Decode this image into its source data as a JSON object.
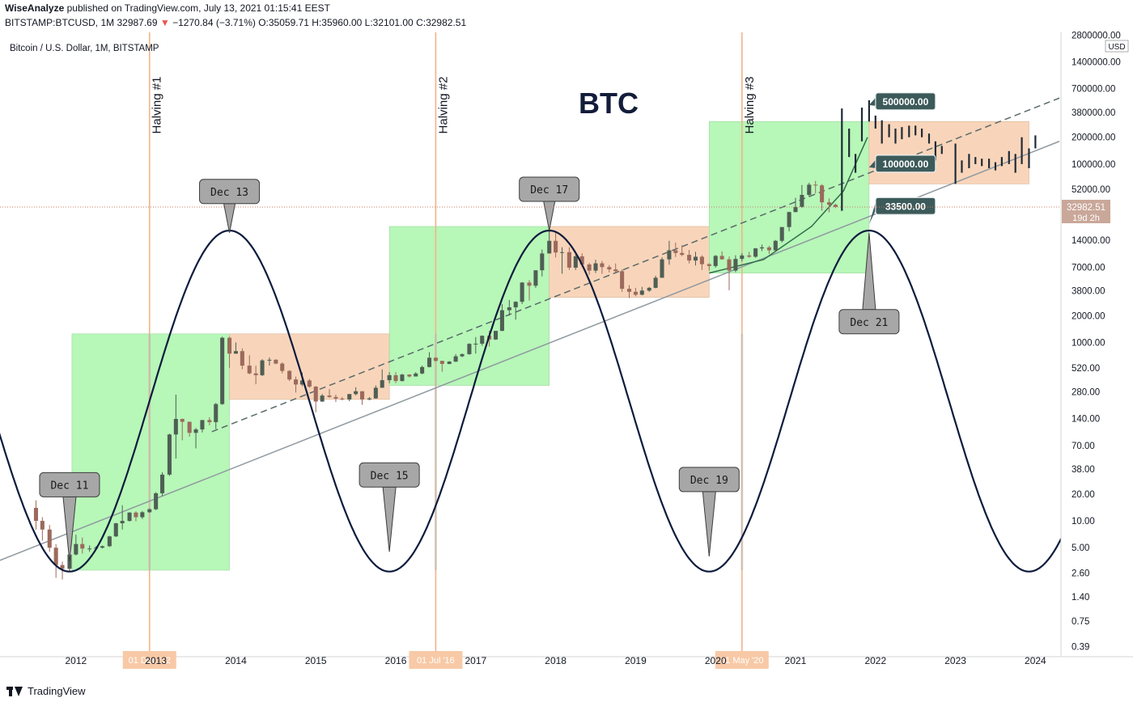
{
  "header": {
    "author": "WiseAnalyze",
    "published_text": "published on TradingView.com, July 13, 2021 01:15:41 EEST",
    "symbol": "BITSTAMP:BTCUSD, 1M",
    "price": "32987.69",
    "change_arrow": "▼",
    "change": "−1270.84 (−3.71%)",
    "open": "O:35059.71",
    "high": "H:35960.00",
    "low": "L:32101.00",
    "close": "C:32982.51"
  },
  "legend_label": "Bitcoin / U.S. Dollar, 1M, BITSTAMP",
  "chart_title": "BTC",
  "footer_brand": "TradingView",
  "colors": {
    "green_box": "#b7f7b8",
    "orange_box": "#f8d5ba",
    "halving_line": "#f0b48a",
    "wave": "#0d1b3e",
    "candle_up": "#4f5f54",
    "candle_down": "#9c6a5c",
    "label_fill": "#a7a7a7",
    "price_tag": "#3d5a5a",
    "current_price_bg": "#c9a799"
  },
  "chart_data": {
    "type": "candlestick",
    "y_scale": "log",
    "ylim": [
      0.3,
      3000000
    ],
    "xlim": [
      "2011-01",
      "2024-04"
    ],
    "y_ticks": [
      "2800000.00",
      "1400000.00",
      "700000.00",
      "380000.00",
      "200000.00",
      "100000.00",
      "52000.00",
      "14000.00",
      "7000.00",
      "3800.00",
      "2000.00",
      "1000.00",
      "520.00",
      "280.00",
      "140.00",
      "70.00",
      "38.00",
      "20.00",
      "10.00",
      "5.00",
      "2.60",
      "1.40",
      "0.75",
      "0.39"
    ],
    "y_tick_values": [
      2800000,
      1400000,
      700000,
      380000,
      200000,
      100000,
      52000,
      14000,
      7000,
      3800,
      2000,
      1000,
      520,
      280,
      140,
      70,
      38,
      20,
      10,
      5,
      2.6,
      1.4,
      0.75,
      0.39
    ],
    "x_ticks": [
      "2012",
      "2013",
      "2014",
      "2015",
      "2016",
      "2017",
      "2018",
      "2019",
      "2020",
      "2021",
      "2022",
      "2023",
      "2024"
    ],
    "x_tick_dates": [
      2012.0,
      2013.0,
      2014.0,
      2015.0,
      2016.0,
      2017.0,
      2018.0,
      2019.0,
      2020.0,
      2021.0,
      2022.0,
      2023.0,
      2024.0
    ],
    "currency_label": "USD",
    "current_price": {
      "label": "32982.51",
      "countdown": "19d 2h",
      "value": 32982.51
    },
    "halvings": [
      {
        "label": "Halving #1",
        "date": 2012.92,
        "date_tag": "01 Dec '12"
      },
      {
        "label": "Halving #2",
        "date": 2016.5,
        "date_tag": "01 Jul '16"
      },
      {
        "label": "Halving #3",
        "date": 2020.33,
        "date_tag": "01 May '20"
      }
    ],
    "cycle_wave": {
      "tops": [
        2013.92,
        2017.92,
        2021.92
      ],
      "bottoms": [
        2011.92,
        2015.92,
        2019.92,
        2023.92
      ],
      "top_value": 18000,
      "bottom_value": 2.7
    },
    "callouts": [
      {
        "label": "Dec 11",
        "date": 2011.92,
        "value": 3.5,
        "position": "above"
      },
      {
        "label": "Dec 13",
        "date": 2013.92,
        "value": 17000,
        "position": "above"
      },
      {
        "label": "Dec 15",
        "date": 2015.92,
        "value": 4.5,
        "position": "above"
      },
      {
        "label": "Dec 17",
        "date": 2017.92,
        "value": 18000,
        "position": "above"
      },
      {
        "label": "Dec 19",
        "date": 2019.92,
        "value": 4.0,
        "position": "above"
      },
      {
        "label": "Dec 21",
        "date": 2021.92,
        "value": 17000,
        "position": "below"
      }
    ],
    "price_targets": [
      {
        "label": "500000.00",
        "value": 500000
      },
      {
        "label": "100000.00",
        "value": 100000
      },
      {
        "label": "33500.00",
        "value": 33500
      }
    ],
    "boxes": [
      {
        "kind": "green",
        "x0": 2011.95,
        "x1": 2013.92,
        "y0": 2.8,
        "y1": 1250
      },
      {
        "kind": "orange",
        "x0": 2013.92,
        "x1": 2015.92,
        "y0": 230,
        "y1": 1250
      },
      {
        "kind": "green",
        "x0": 2015.92,
        "x1": 2017.92,
        "y0": 330,
        "y1": 20000
      },
      {
        "kind": "orange",
        "x0": 2017.92,
        "x1": 2019.92,
        "y0": 3200,
        "y1": 20000
      },
      {
        "kind": "green",
        "x0": 2019.92,
        "x1": 2021.92,
        "y0": 6000,
        "y1": 300000
      },
      {
        "kind": "orange",
        "x0": 2021.92,
        "x1": 2023.92,
        "y0": 60000,
        "y1": 300000
      }
    ],
    "trend_lines": [
      {
        "style": "solid",
        "from": [
          2010.9,
          3.2
        ],
        "to": [
          2024.3,
          180000
        ]
      },
      {
        "style": "dashed",
        "from": [
          2013.7,
          100
        ],
        "to": [
          2024.3,
          550000
        ]
      }
    ],
    "projection_curve": [
      [
        2019.92,
        6000
      ],
      [
        2020.6,
        8500
      ],
      [
        2021.2,
        20000
      ],
      [
        2021.6,
        50000
      ],
      [
        2021.9,
        200000
      ]
    ],
    "candles": [
      [
        2011.5,
        14,
        17,
        8,
        10
      ],
      [
        2011.58,
        10,
        11,
        6,
        8
      ],
      [
        2011.67,
        8,
        9,
        4.5,
        5
      ],
      [
        2011.75,
        5,
        5.5,
        2.3,
        3.2
      ],
      [
        2011.83,
        3.2,
        3.5,
        2.2,
        2.9
      ],
      [
        2011.92,
        2.9,
        4.5,
        2.7,
        4.2
      ],
      [
        2012.0,
        4.2,
        7,
        4.1,
        5.5
      ],
      [
        2012.08,
        5.5,
        6.5,
        4.3,
        4.9
      ],
      [
        2012.17,
        4.9,
        5.3,
        4.5,
        4.9
      ],
      [
        2012.25,
        4.9,
        5.2,
        4.7,
        5.0
      ],
      [
        2012.33,
        5.0,
        5.3,
        4.9,
        5.2
      ],
      [
        2012.42,
        5.2,
        6.8,
        5.1,
        6.7
      ],
      [
        2012.5,
        6.7,
        9.5,
        6.6,
        9.4
      ],
      [
        2012.58,
        9.4,
        15,
        8,
        10
      ],
      [
        2012.67,
        10,
        12.5,
        9.8,
        12.4
      ],
      [
        2012.75,
        12.4,
        12.8,
        9.9,
        11
      ],
      [
        2012.83,
        11,
        12.9,
        10.5,
        12.5
      ],
      [
        2012.92,
        12.5,
        13.8,
        12.3,
        13.5
      ],
      [
        2013.0,
        13.5,
        21,
        13.2,
        20.4
      ],
      [
        2013.08,
        20.4,
        35,
        19,
        33
      ],
      [
        2013.17,
        33,
        95,
        32,
        93
      ],
      [
        2013.25,
        93,
        260,
        50,
        139
      ],
      [
        2013.33,
        139,
        140,
        80,
        129
      ],
      [
        2013.42,
        129,
        130,
        88,
        97
      ],
      [
        2013.5,
        97,
        110,
        65,
        106
      ],
      [
        2013.58,
        106,
        125,
        98,
        135
      ],
      [
        2013.67,
        135,
        145,
        118,
        128
      ],
      [
        2013.75,
        128,
        210,
        107,
        204
      ],
      [
        2013.83,
        204,
        1160,
        200,
        1130
      ],
      [
        2013.92,
        1130,
        1160,
        520,
        750
      ],
      [
        2014.0,
        750,
        1000,
        745,
        800
      ],
      [
        2014.08,
        800,
        860,
        500,
        550
      ],
      [
        2014.17,
        550,
        720,
        440,
        450
      ],
      [
        2014.25,
        450,
        550,
        340,
        430
      ],
      [
        2014.33,
        430,
        650,
        420,
        630
      ],
      [
        2014.42,
        630,
        680,
        550,
        640
      ],
      [
        2014.5,
        640,
        650,
        570,
        580
      ],
      [
        2014.58,
        580,
        600,
        450,
        480
      ],
      [
        2014.67,
        480,
        490,
        370,
        385
      ],
      [
        2014.75,
        385,
        415,
        275,
        338
      ],
      [
        2014.83,
        338,
        460,
        325,
        375
      ],
      [
        2014.92,
        375,
        390,
        310,
        320
      ],
      [
        2015.0,
        320,
        325,
        165,
        218
      ],
      [
        2015.08,
        218,
        265,
        215,
        254
      ],
      [
        2015.17,
        254,
        300,
        240,
        245
      ],
      [
        2015.25,
        245,
        260,
        215,
        235
      ],
      [
        2015.33,
        235,
        245,
        225,
        230
      ],
      [
        2015.42,
        230,
        265,
        220,
        264
      ],
      [
        2015.5,
        264,
        315,
        255,
        284
      ],
      [
        2015.58,
        284,
        285,
        200,
        230
      ],
      [
        2015.67,
        230,
        245,
        225,
        236
      ],
      [
        2015.75,
        236,
        330,
        235,
        311
      ],
      [
        2015.83,
        311,
        500,
        310,
        378
      ],
      [
        2015.92,
        378,
        465,
        350,
        430
      ],
      [
        2016.0,
        430,
        465,
        350,
        370
      ],
      [
        2016.08,
        370,
        445,
        365,
        437
      ],
      [
        2016.17,
        437,
        440,
        405,
        416
      ],
      [
        2016.25,
        416,
        465,
        415,
        449
      ],
      [
        2016.33,
        449,
        550,
        440,
        531
      ],
      [
        2016.42,
        531,
        780,
        525,
        675
      ],
      [
        2016.5,
        675,
        680,
        610,
        622
      ],
      [
        2016.58,
        622,
        625,
        470,
        575
      ],
      [
        2016.67,
        575,
        620,
        570,
        610
      ],
      [
        2016.75,
        610,
        740,
        605,
        700
      ],
      [
        2016.83,
        700,
        755,
        685,
        740
      ],
      [
        2016.92,
        740,
        980,
        730,
        965
      ],
      [
        2017.0,
        965,
        1150,
        750,
        970
      ],
      [
        2017.08,
        970,
        1200,
        920,
        1190
      ],
      [
        2017.17,
        1190,
        1350,
        900,
        1080
      ],
      [
        2017.25,
        1080,
        1350,
        1070,
        1350
      ],
      [
        2017.33,
        1350,
        2700,
        1340,
        2300
      ],
      [
        2017.42,
        2300,
        3000,
        2000,
        2480
      ],
      [
        2017.5,
        2480,
        2900,
        1800,
        2860
      ],
      [
        2017.58,
        2860,
        4750,
        2700,
        4700
      ],
      [
        2017.67,
        4700,
        5000,
        2950,
        4330
      ],
      [
        2017.75,
        4330,
        6450,
        4100,
        6450
      ],
      [
        2017.83,
        6450,
        11000,
        5500,
        9950
      ],
      [
        2017.92,
        9950,
        19700,
        9950,
        13800
      ],
      [
        2018.0,
        13800,
        17200,
        9000,
        10200
      ],
      [
        2018.08,
        10200,
        11700,
        5900,
        10300
      ],
      [
        2018.17,
        10300,
        11700,
        6500,
        6900
      ],
      [
        2018.25,
        6900,
        9750,
        6500,
        9250
      ],
      [
        2018.33,
        9250,
        10000,
        7000,
        7500
      ],
      [
        2018.42,
        7500,
        7800,
        5750,
        6400
      ],
      [
        2018.5,
        6400,
        8480,
        6000,
        7720
      ],
      [
        2018.58,
        7720,
        8200,
        5880,
        7000
      ],
      [
        2018.67,
        7000,
        7400,
        6100,
        6600
      ],
      [
        2018.75,
        6600,
        7700,
        6100,
        6300
      ],
      [
        2018.83,
        6300,
        6600,
        3700,
        4000
      ],
      [
        2018.92,
        4000,
        4400,
        3150,
        3700
      ],
      [
        2019.0,
        3700,
        4100,
        3300,
        3430
      ],
      [
        2019.08,
        3430,
        4200,
        3380,
        3820
      ],
      [
        2019.17,
        3820,
        4200,
        3700,
        4100
      ],
      [
        2019.25,
        4100,
        5600,
        4050,
        5320
      ],
      [
        2019.33,
        5320,
        9000,
        5300,
        8550
      ],
      [
        2019.42,
        8550,
        13800,
        7450,
        10800
      ],
      [
        2019.5,
        10800,
        13200,
        9100,
        10080
      ],
      [
        2019.58,
        10080,
        12300,
        9300,
        9600
      ],
      [
        2019.67,
        9600,
        10900,
        7700,
        8300
      ],
      [
        2019.75,
        8300,
        10400,
        7300,
        9150
      ],
      [
        2019.83,
        9150,
        9500,
        6500,
        7550
      ],
      [
        2019.92,
        7550,
        7750,
        6400,
        7200
      ],
      [
        2020.0,
        7200,
        9550,
        6900,
        9350
      ],
      [
        2020.08,
        9350,
        10500,
        8500,
        8550
      ],
      [
        2020.17,
        8550,
        9200,
        3850,
        6400
      ],
      [
        2020.25,
        6400,
        9500,
        6150,
        8650
      ],
      [
        2020.33,
        8650,
        10000,
        8100,
        9450
      ],
      [
        2020.42,
        9450,
        10400,
        8900,
        9150
      ],
      [
        2020.5,
        9150,
        11450,
        8900,
        11350
      ],
      [
        2020.58,
        11350,
        12500,
        10600,
        11650
      ],
      [
        2020.67,
        11650,
        12100,
        9850,
        10800
      ],
      [
        2020.75,
        10800,
        14100,
        10400,
        13800
      ],
      [
        2020.83,
        13800,
        19500,
        13200,
        19700
      ],
      [
        2020.92,
        19700,
        29300,
        17600,
        29000
      ],
      [
        2021.0,
        29000,
        41900,
        28800,
        33100
      ],
      [
        2021.08,
        33100,
        58300,
        32300,
        45200
      ],
      [
        2021.17,
        45200,
        61700,
        43000,
        58800
      ],
      [
        2021.25,
        58800,
        64800,
        47000,
        57700
      ],
      [
        2021.33,
        57700,
        59500,
        30000,
        37300
      ],
      [
        2021.42,
        37300,
        41300,
        28800,
        35000
      ],
      [
        2021.5,
        35000,
        36000,
        32100,
        33000
      ]
    ],
    "future_bars": [
      [
        2021.58,
        30000,
        420000
      ],
      [
        2021.67,
        120000,
        250000
      ],
      [
        2021.75,
        80000,
        130000
      ],
      [
        2021.83,
        180000,
        430000
      ],
      [
        2021.92,
        300000,
        520000
      ],
      [
        2022.0,
        250000,
        350000
      ],
      [
        2022.08,
        170000,
        310000
      ],
      [
        2022.17,
        200000,
        280000
      ],
      [
        2022.25,
        170000,
        250000
      ],
      [
        2022.33,
        190000,
        260000
      ],
      [
        2022.42,
        200000,
        270000
      ],
      [
        2022.5,
        210000,
        270000
      ],
      [
        2022.58,
        200000,
        250000
      ],
      [
        2022.67,
        170000,
        220000
      ],
      [
        2022.75,
        110000,
        180000
      ],
      [
        2022.83,
        130000,
        160000
      ],
      [
        2023.0,
        60000,
        170000
      ],
      [
        2023.08,
        80000,
        110000
      ],
      [
        2023.17,
        90000,
        130000
      ],
      [
        2023.25,
        100000,
        120000
      ],
      [
        2023.33,
        95000,
        115000
      ],
      [
        2023.42,
        90000,
        115000
      ],
      [
        2023.5,
        85000,
        105000
      ],
      [
        2023.58,
        95000,
        120000
      ],
      [
        2023.67,
        100000,
        140000
      ],
      [
        2023.75,
        80000,
        130000
      ],
      [
        2023.83,
        100000,
        200000
      ],
      [
        2023.92,
        90000,
        150000
      ],
      [
        2024.0,
        150000,
        210000
      ]
    ]
  }
}
